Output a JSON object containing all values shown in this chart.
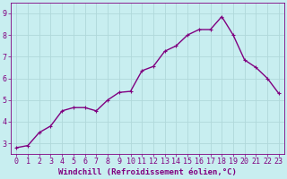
{
  "x": [
    0,
    1,
    2,
    3,
    4,
    5,
    6,
    7,
    8,
    9,
    10,
    11,
    12,
    13,
    14,
    15,
    16,
    17,
    18,
    19,
    20,
    21,
    22,
    23
  ],
  "y": [
    2.8,
    2.9,
    3.5,
    3.8,
    4.5,
    4.65,
    4.65,
    4.5,
    5.0,
    5.35,
    5.4,
    6.35,
    6.55,
    7.25,
    7.5,
    8.0,
    8.25,
    8.25,
    8.85,
    8.0,
    6.85,
    6.5,
    6.0,
    5.3
  ],
  "line_color": "#800080",
  "marker": "+",
  "bg_color": "#c8eef0",
  "grid_color": "#b0d8da",
  "axis_color": "#800080",
  "xlabel": "Windchill (Refroidissement éolien,°C)",
  "ylim": [
    2.5,
    9.5
  ],
  "xlim": [
    -0.5,
    23.5
  ],
  "yticks": [
    3,
    4,
    5,
    6,
    7,
    8,
    9
  ],
  "xticks": [
    0,
    1,
    2,
    3,
    4,
    5,
    6,
    7,
    8,
    9,
    10,
    11,
    12,
    13,
    14,
    15,
    16,
    17,
    18,
    19,
    20,
    21,
    22,
    23
  ],
  "xlabel_fontsize": 6.5,
  "tick_fontsize": 6.0,
  "line_width": 1.0,
  "marker_size": 3.5,
  "marker_edge_width": 0.8
}
